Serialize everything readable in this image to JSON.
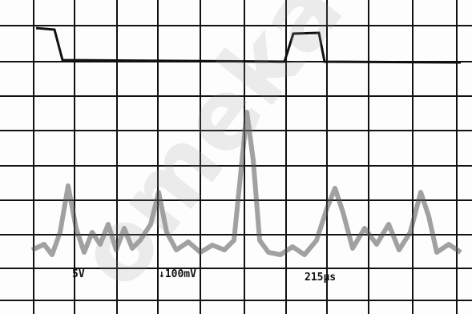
{
  "labels": {
    "channel1": "5V",
    "channel2": "↓100mV",
    "timebase": "215μs"
  },
  "watermark": "omeka"
}
